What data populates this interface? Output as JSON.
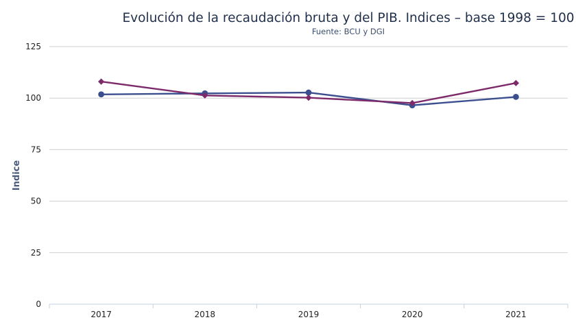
{
  "chart_data": {
    "type": "line",
    "title": "Evolución de la recaudación bruta y del PIB. Indices – base 1998 = 100",
    "subtitle": "Fuente: BCU y DGI",
    "xlabel": "",
    "ylabel": "Indice",
    "x": [
      "2017",
      "2018",
      "2019",
      "2020",
      "2021"
    ],
    "ylim": [
      0,
      125
    ],
    "yticks": [
      0,
      25,
      50,
      75,
      100,
      125
    ],
    "grid": true,
    "legend": "none",
    "series": [
      {
        "values": [
          101.8,
          102.3,
          102.7,
          96.5,
          100.6
        ],
        "color": "#3b4f8f",
        "marker": "circle"
      },
      {
        "values": [
          108.0,
          101.3,
          100.2,
          97.6,
          107.3
        ],
        "color": "#7d2a6b",
        "marker": "diamond"
      }
    ]
  }
}
